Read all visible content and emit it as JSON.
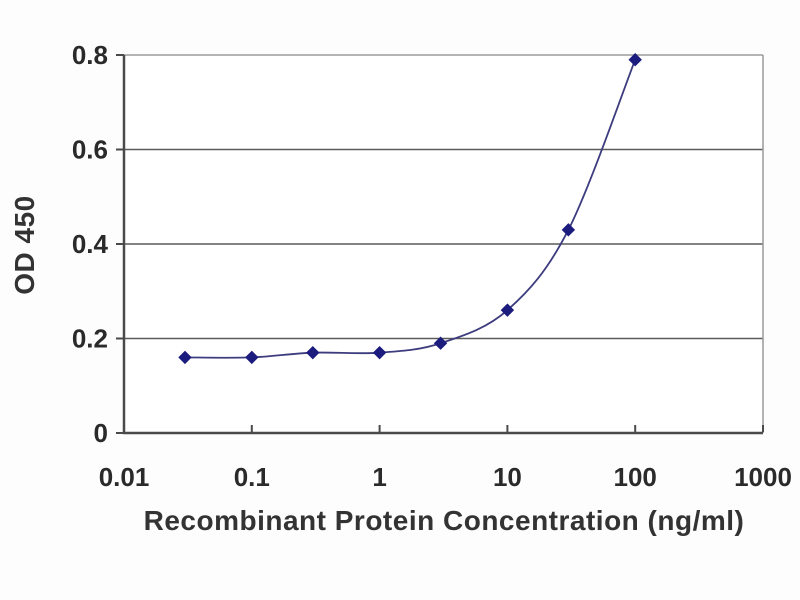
{
  "chart_data": {
    "type": "line",
    "title": "",
    "xlabel": "Recombinant Protein Concentration (ng/ml)",
    "ylabel": "OD 450",
    "x_scale": "log",
    "x": [
      0.03,
      0.1,
      0.3,
      1,
      3,
      10,
      30,
      100
    ],
    "y": [
      0.16,
      0.16,
      0.17,
      0.17,
      0.19,
      0.26,
      0.43,
      0.79
    ],
    "x_ticks": [
      0.01,
      0.1,
      1,
      10,
      100,
      1000
    ],
    "x_tick_labels": [
      "0.01",
      "0.1",
      "1",
      "10",
      "100",
      "1000"
    ],
    "y_ticks": [
      0,
      0.2,
      0.4,
      0.6,
      0.8
    ],
    "y_tick_labels": [
      "0",
      "0.2",
      "0.4",
      "0.6",
      "0.8"
    ],
    "xlim": [
      0.01,
      1000
    ],
    "ylim": [
      0,
      0.8
    ],
    "grid": "horizontal",
    "legend": "none",
    "marker": "diamond",
    "line_style": "smooth",
    "colors": {
      "line": "#3d3c7e",
      "marker": "#1c1b7e",
      "gridline": "#5a5a5a",
      "axis": "#4a4a4a",
      "plot_border_top": "#b4b4b4",
      "plot_border_right": "#9a9a9a",
      "tick_label": "#2a2a2a",
      "background": "#ffffff"
    }
  }
}
